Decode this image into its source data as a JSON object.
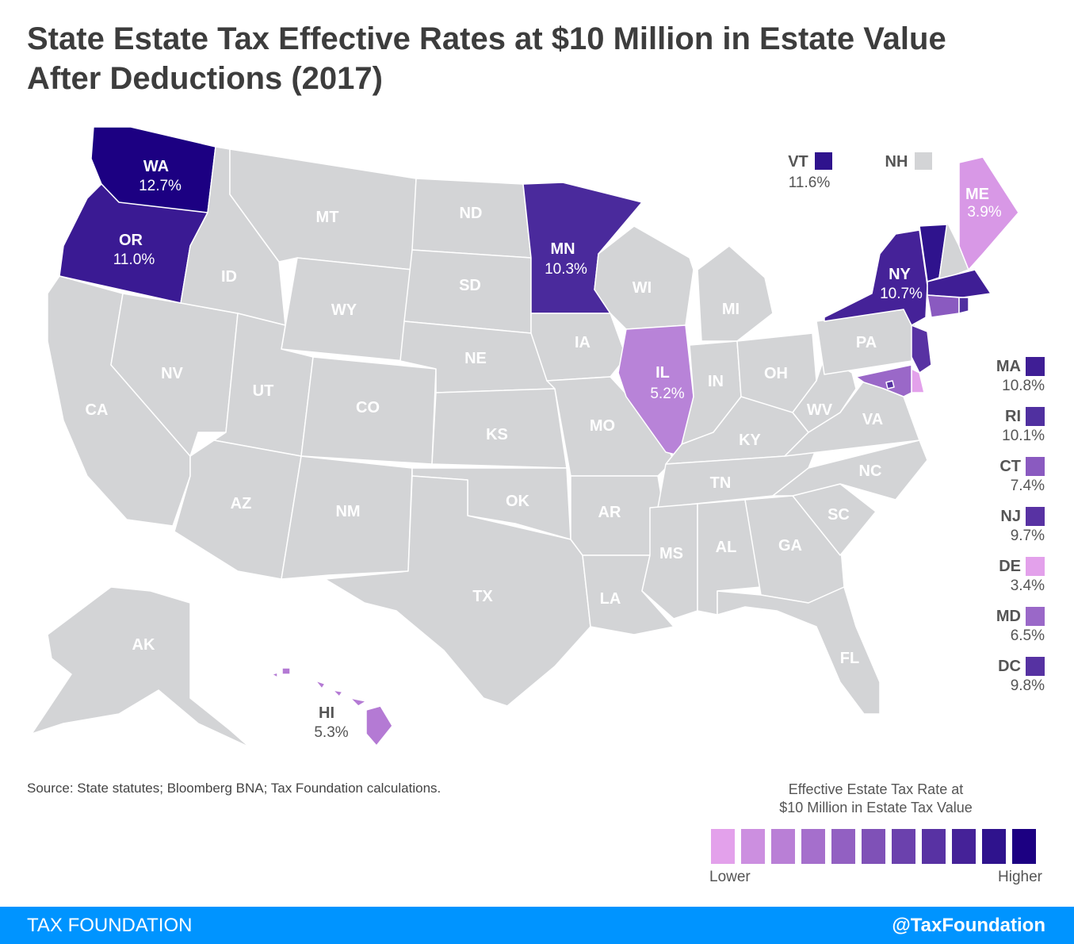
{
  "title": "State Estate Tax Effective Rates at $10 Million in Estate Value After Deductions (2017)",
  "no_tax_color": "#d3d4d6",
  "states": {
    "WA": {
      "label": "WA",
      "rate": "12.7%",
      "color": "#1c0082"
    },
    "OR": {
      "label": "OR",
      "rate": "11.0%",
      "color": "#3a1a93"
    },
    "MN": {
      "label": "MN",
      "rate": "10.3%",
      "color": "#4a2a9c"
    },
    "NY": {
      "label": "NY",
      "rate": "10.7%",
      "color": "#452298"
    },
    "IL": {
      "label": "IL",
      "rate": "5.2%",
      "color": "#b883d8"
    },
    "ME": {
      "label": "ME",
      "rate": "3.9%",
      "color": "#d898e6"
    },
    "HI": {
      "label": "HI",
      "rate": "5.3%",
      "color": "#b47ad4"
    },
    "VT": {
      "label": "VT",
      "rate": "11.6%",
      "color": "#2f138d"
    },
    "NH": {
      "label": "NH",
      "color": "#d3d4d6"
    },
    "MA": {
      "label": "MA",
      "rate": "10.8%",
      "color": "#3f1e95"
    },
    "RI": {
      "label": "RI",
      "rate": "10.1%",
      "color": "#5030a0"
    },
    "CT": {
      "label": "CT",
      "rate": "7.4%",
      "color": "#8a5ac0"
    },
    "NJ": {
      "label": "NJ",
      "rate": "9.7%",
      "color": "#5832a3"
    },
    "DE": {
      "label": "DE",
      "rate": "3.4%",
      "color": "#e3a1eb"
    },
    "MD": {
      "label": "MD",
      "rate": "6.5%",
      "color": "#9a68c8"
    },
    "DC": {
      "label": "DC",
      "rate": "9.8%",
      "color": "#5632a2"
    },
    "MT": {
      "label": "MT"
    },
    "ID": {
      "label": "ID"
    },
    "WY": {
      "label": "WY"
    },
    "NV": {
      "label": "NV"
    },
    "CA": {
      "label": "CA"
    },
    "UT": {
      "label": "UT"
    },
    "CO": {
      "label": "CO"
    },
    "AZ": {
      "label": "AZ"
    },
    "NM": {
      "label": "NM"
    },
    "ND": {
      "label": "ND"
    },
    "SD": {
      "label": "SD"
    },
    "NE": {
      "label": "NE"
    },
    "KS": {
      "label": "KS"
    },
    "OK": {
      "label": "OK"
    },
    "TX": {
      "label": "TX"
    },
    "IA": {
      "label": "IA"
    },
    "MO": {
      "label": "MO"
    },
    "AR": {
      "label": "AR"
    },
    "LA": {
      "label": "LA"
    },
    "WI": {
      "label": "WI"
    },
    "MI": {
      "label": "MI"
    },
    "IN": {
      "label": "IN"
    },
    "OH": {
      "label": "OH"
    },
    "KY": {
      "label": "KY"
    },
    "TN": {
      "label": "TN"
    },
    "MS": {
      "label": "MS"
    },
    "AL": {
      "label": "AL"
    },
    "GA": {
      "label": "GA"
    },
    "FL": {
      "label": "FL"
    },
    "SC": {
      "label": "SC"
    },
    "NC": {
      "label": "NC"
    },
    "VA": {
      "label": "VA"
    },
    "WV": {
      "label": "WV"
    },
    "PA": {
      "label": "PA"
    },
    "AK": {
      "label": "AK"
    }
  },
  "source": "Source: State statutes; Bloomberg BNA; Tax Foundation calculations.",
  "legend": {
    "title_line1": "Effective Estate Tax Rate at",
    "title_line2": "$10 Million in Estate Tax Value",
    "low_label": "Lower",
    "high_label": "Higher",
    "colors": [
      "#e3a1eb",
      "#cc8fe0",
      "#b97fd6",
      "#a56fcc",
      "#9260c2",
      "#7f51b7",
      "#6b41ad",
      "#5832a3",
      "#452298",
      "#2f138d",
      "#1c0082"
    ]
  },
  "footer": {
    "brand": "TAX FOUNDATION",
    "handle": "@TaxFoundation"
  }
}
